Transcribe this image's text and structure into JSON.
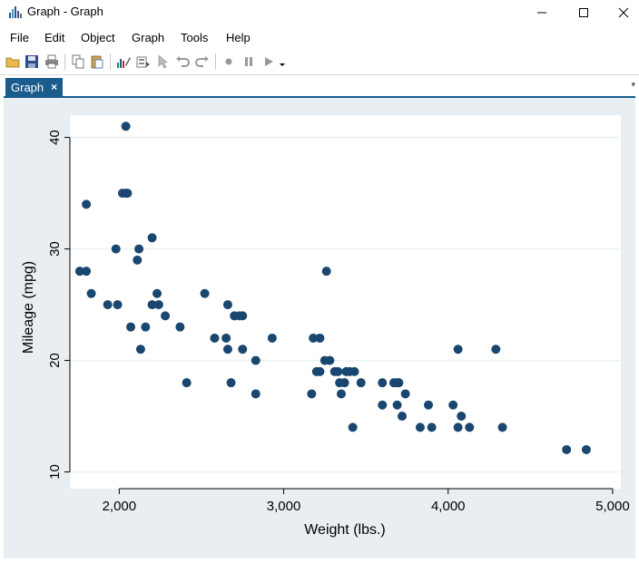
{
  "window": {
    "title": "Graph - Graph",
    "controls": [
      "minimize",
      "maximize",
      "close"
    ]
  },
  "menu": [
    "File",
    "Edit",
    "Object",
    "Graph",
    "Tools",
    "Help"
  ],
  "toolbar": {
    "icons": [
      "open-icon",
      "save-icon",
      "print-icon",
      "copy-icon",
      "paste-icon",
      "graph-editor-icon",
      "object-browser-icon",
      "pointer-icon",
      "undo-icon",
      "redo-icon",
      "record-icon",
      "pause-icon",
      "play-icon"
    ]
  },
  "tab": {
    "label": "Graph",
    "close": "×"
  },
  "chart_data": {
    "type": "scatter",
    "xlabel": "Weight (lbs.)",
    "ylabel": "Mileage (mpg)",
    "xlim": [
      1700,
      5050
    ],
    "ylim": [
      8.5,
      42
    ],
    "xticks": [
      2000,
      3000,
      4000,
      5000
    ],
    "xtick_labels": [
      "2,000",
      "3,000",
      "4,000",
      "5,000"
    ],
    "yticks": [
      10,
      20,
      30,
      40
    ],
    "ytick_labels": [
      "10",
      "20",
      "30",
      "40"
    ],
    "marker_color": "#1a476f",
    "grid": "horizontal",
    "points": [
      [
        1760,
        28
      ],
      [
        1800,
        28
      ],
      [
        1800,
        34
      ],
      [
        1830,
        26
      ],
      [
        1930,
        25
      ],
      [
        1980,
        30
      ],
      [
        1990,
        25
      ],
      [
        2020,
        35
      ],
      [
        2040,
        41
      ],
      [
        2040,
        35
      ],
      [
        2050,
        35
      ],
      [
        2070,
        23
      ],
      [
        2110,
        29
      ],
      [
        2120,
        30
      ],
      [
        2130,
        21
      ],
      [
        2160,
        23
      ],
      [
        2200,
        31
      ],
      [
        2200,
        25
      ],
      [
        2230,
        26
      ],
      [
        2240,
        25
      ],
      [
        2280,
        24
      ],
      [
        2370,
        23
      ],
      [
        2410,
        18
      ],
      [
        2520,
        26
      ],
      [
        2580,
        22
      ],
      [
        2650,
        22
      ],
      [
        2660,
        25
      ],
      [
        2660,
        21
      ],
      [
        2680,
        18
      ],
      [
        2700,
        24
      ],
      [
        2730,
        24
      ],
      [
        2750,
        24
      ],
      [
        2750,
        21
      ],
      [
        2830,
        20
      ],
      [
        2830,
        17
      ],
      [
        2930,
        22
      ],
      [
        3170,
        17
      ],
      [
        3180,
        22
      ],
      [
        3200,
        19
      ],
      [
        3220,
        22
      ],
      [
        3220,
        19
      ],
      [
        3250,
        20
      ],
      [
        3260,
        28
      ],
      [
        3280,
        20
      ],
      [
        3310,
        19
      ],
      [
        3330,
        19
      ],
      [
        3340,
        18
      ],
      [
        3350,
        17
      ],
      [
        3370,
        18
      ],
      [
        3380,
        19
      ],
      [
        3400,
        19
      ],
      [
        3420,
        14
      ],
      [
        3430,
        19
      ],
      [
        3470,
        18
      ],
      [
        3600,
        16
      ],
      [
        3600,
        18
      ],
      [
        3670,
        18
      ],
      [
        3690,
        16
      ],
      [
        3690,
        18
      ],
      [
        3700,
        18
      ],
      [
        3720,
        15
      ],
      [
        3740,
        17
      ],
      [
        3830,
        14
      ],
      [
        3880,
        16
      ],
      [
        3900,
        14
      ],
      [
        4030,
        16
      ],
      [
        4060,
        21
      ],
      [
        4060,
        14
      ],
      [
        4080,
        15
      ],
      [
        4130,
        14
      ],
      [
        4290,
        21
      ],
      [
        4330,
        14
      ],
      [
        4720,
        12
      ],
      [
        4840,
        12
      ]
    ]
  }
}
